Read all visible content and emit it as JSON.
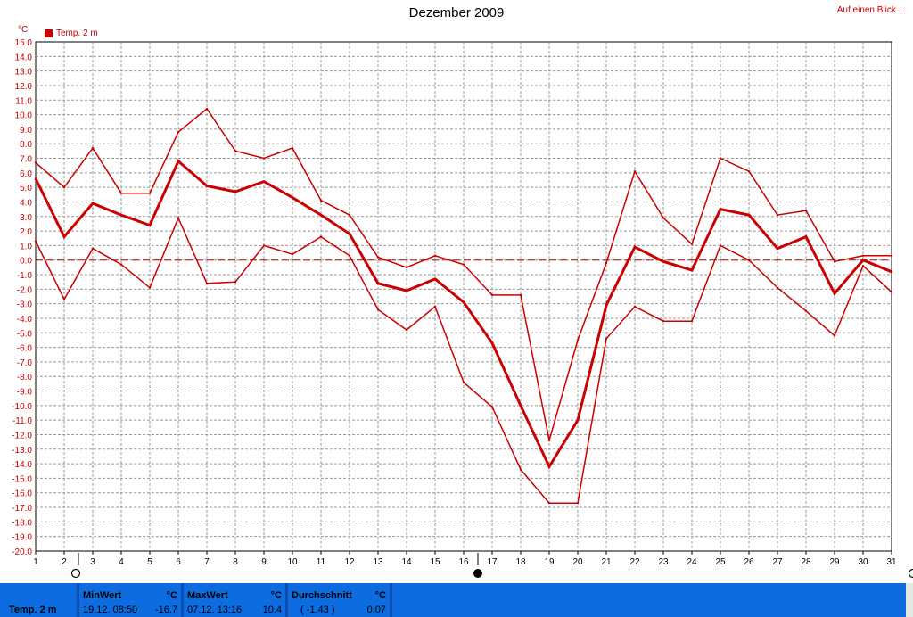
{
  "title": "Dezember 2009",
  "link_label": "Auf einen Blick ...",
  "unit_label": "°C",
  "legend_label": "Temp. 2 m",
  "colors": {
    "series": "#cc0000",
    "grid": "#999999",
    "statusbar": "#0d6de0"
  },
  "chart_data": {
    "type": "line",
    "title": "Dezember 2009",
    "ylabel": "°C",
    "ylim": [
      -20,
      15
    ],
    "ytick_step": 1,
    "ytick_labels": [
      "15.0",
      "14.0",
      "13.0",
      "12.0",
      "11.0",
      "10.0",
      "9.0",
      "8.0",
      "7.0",
      "6.0",
      "5.0",
      "4.0",
      "3.0",
      "2.0",
      "1.0",
      "0.0",
      "-1.0",
      "-2.0",
      "-3.0",
      "-4.0",
      "-5.0",
      "-6.0",
      "-7.0",
      "-8.0",
      "-9.0",
      "-10.0",
      "-11.0",
      "-12.0",
      "-13.0",
      "-14.0",
      "-15.0",
      "-16.0",
      "-17.0",
      "-18.0",
      "-19.0",
      "-20.0"
    ],
    "x": [
      1,
      2,
      3,
      4,
      5,
      6,
      7,
      8,
      9,
      10,
      11,
      12,
      13,
      14,
      15,
      16,
      17,
      18,
      19,
      20,
      21,
      22,
      23,
      24,
      25,
      26,
      27,
      28,
      29,
      30,
      31
    ],
    "grid": true,
    "reference_line": 0,
    "legend_position": "top-left",
    "series": [
      {
        "name": "Temp. 2 m",
        "role": "max",
        "values": [
          6.7,
          5.0,
          7.7,
          4.6,
          4.6,
          8.8,
          10.4,
          7.5,
          7.0,
          7.7,
          4.1,
          3.1,
          0.2,
          -0.5,
          0.3,
          -0.3,
          -2.4,
          -2.4,
          -12.4,
          -5.5,
          -0.2,
          6.1,
          2.9,
          1.1,
          7.0,
          6.1,
          3.1,
          3.4,
          -0.1,
          0.3,
          0.3
        ]
      },
      {
        "name": "Temp. 2 m",
        "role": "mean",
        "values": [
          5.6,
          1.6,
          3.9,
          3.1,
          2.4,
          6.8,
          5.1,
          4.7,
          5.4,
          4.3,
          3.1,
          1.8,
          -1.6,
          -2.1,
          -1.3,
          -2.9,
          -5.7,
          -10.0,
          -14.2,
          -11.0,
          -3.1,
          0.9,
          -0.1,
          -0.7,
          3.5,
          3.1,
          0.8,
          1.6,
          -2.3,
          0.0,
          -0.8
        ]
      },
      {
        "name": "Temp. 2 m",
        "role": "min",
        "values": [
          1.3,
          -2.7,
          0.8,
          -0.3,
          -1.9,
          2.9,
          -1.6,
          -1.5,
          1.0,
          0.4,
          1.6,
          0.3,
          -3.4,
          -4.8,
          -3.2,
          -8.4,
          -10.1,
          -14.4,
          -16.7,
          -16.7,
          -5.4,
          -3.2,
          -4.2,
          -4.2,
          1.0,
          0.0,
          -1.9,
          -3.5,
          -5.2,
          -0.4,
          -2.2
        ]
      }
    ]
  },
  "axis_markers": {
    "open_circle_after": 2,
    "filled_circle_after": 16
  },
  "statusbar": {
    "series_label": "Temp. 2 m",
    "min": {
      "header": "MinWert",
      "unit": "°C",
      "time": "19.12.  08:50",
      "value": "-16.7"
    },
    "max": {
      "header": "MaxWert",
      "unit": "°C",
      "time": "07.12.  13:16",
      "value": "10.4"
    },
    "avg": {
      "header": "Durchschnitt",
      "unit": "°C",
      "extra": "( -1.43 )",
      "value": "0.07"
    }
  }
}
